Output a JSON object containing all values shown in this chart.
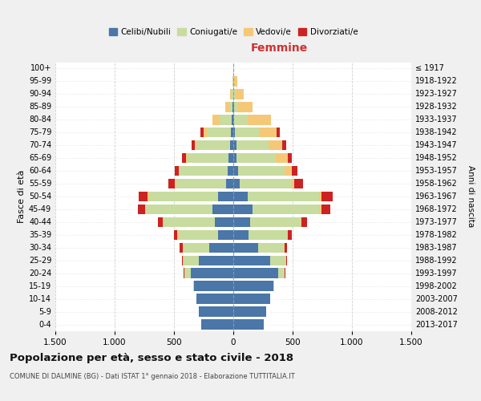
{
  "age_groups": [
    "0-4",
    "5-9",
    "10-14",
    "15-19",
    "20-24",
    "25-29",
    "30-34",
    "35-39",
    "40-44",
    "45-49",
    "50-54",
    "55-59",
    "60-64",
    "65-69",
    "70-74",
    "75-79",
    "80-84",
    "85-89",
    "90-94",
    "95-99",
    "100+"
  ],
  "birth_years": [
    "2013-2017",
    "2008-2012",
    "2003-2007",
    "1998-2002",
    "1993-1997",
    "1988-1992",
    "1983-1987",
    "1978-1982",
    "1973-1977",
    "1968-1972",
    "1963-1967",
    "1958-1962",
    "1953-1957",
    "1948-1952",
    "1943-1947",
    "1938-1942",
    "1933-1937",
    "1928-1932",
    "1923-1927",
    "1918-1922",
    "≤ 1917"
  ],
  "males": {
    "celibi": [
      270,
      290,
      310,
      330,
      360,
      290,
      200,
      130,
      155,
      175,
      130,
      60,
      50,
      40,
      30,
      20,
      15,
      5,
      3,
      2,
      0
    ],
    "coniugati": [
      0,
      0,
      2,
      5,
      50,
      130,
      220,
      330,
      430,
      560,
      580,
      420,
      400,
      350,
      280,
      200,
      100,
      30,
      8,
      3,
      0
    ],
    "vedovi": [
      0,
      0,
      0,
      0,
      5,
      5,
      5,
      10,
      10,
      10,
      10,
      10,
      10,
      10,
      15,
      30,
      60,
      30,
      15,
      5,
      0
    ],
    "divorziati": [
      0,
      0,
      0,
      0,
      5,
      10,
      25,
      30,
      40,
      60,
      75,
      55,
      35,
      30,
      25,
      25,
      0,
      0,
      0,
      0,
      0
    ]
  },
  "females": {
    "nubili": [
      260,
      280,
      310,
      340,
      380,
      310,
      210,
      130,
      145,
      165,
      120,
      55,
      40,
      30,
      25,
      15,
      10,
      5,
      3,
      2,
      0
    ],
    "coniugate": [
      0,
      0,
      2,
      5,
      50,
      130,
      215,
      320,
      420,
      560,
      600,
      430,
      390,
      330,
      270,
      200,
      110,
      35,
      15,
      5,
      0
    ],
    "vedove": [
      0,
      0,
      0,
      0,
      5,
      5,
      5,
      10,
      10,
      15,
      20,
      30,
      60,
      100,
      120,
      150,
      200,
      120,
      70,
      30,
      0
    ],
    "divorziate": [
      0,
      0,
      0,
      0,
      5,
      10,
      20,
      30,
      45,
      75,
      100,
      75,
      50,
      35,
      30,
      30,
      0,
      0,
      0,
      0,
      0
    ]
  },
  "colors": {
    "celibi": "#4a76a8",
    "coniugati": "#c8dca0",
    "vedovi": "#f5c878",
    "divorziati": "#cc2222"
  },
  "xlim": 1500,
  "title": "Popolazione per età, sesso e stato civile - 2018",
  "subtitle": "COMUNE DI DALMINE (BG) - Dati ISTAT 1° gennaio 2018 - Elaborazione TUTTITALIA.IT",
  "ylabel_left": "Fasce di età",
  "ylabel_right": "Anni di nascita",
  "xlabel_right": "Femmine",
  "bg_color": "#f0f0f0",
  "plot_bg_color": "#ffffff",
  "legend_labels": [
    "Celibi/Nubili",
    "Coniugati/e",
    "Vedovi/e",
    "Divorziati/e"
  ]
}
